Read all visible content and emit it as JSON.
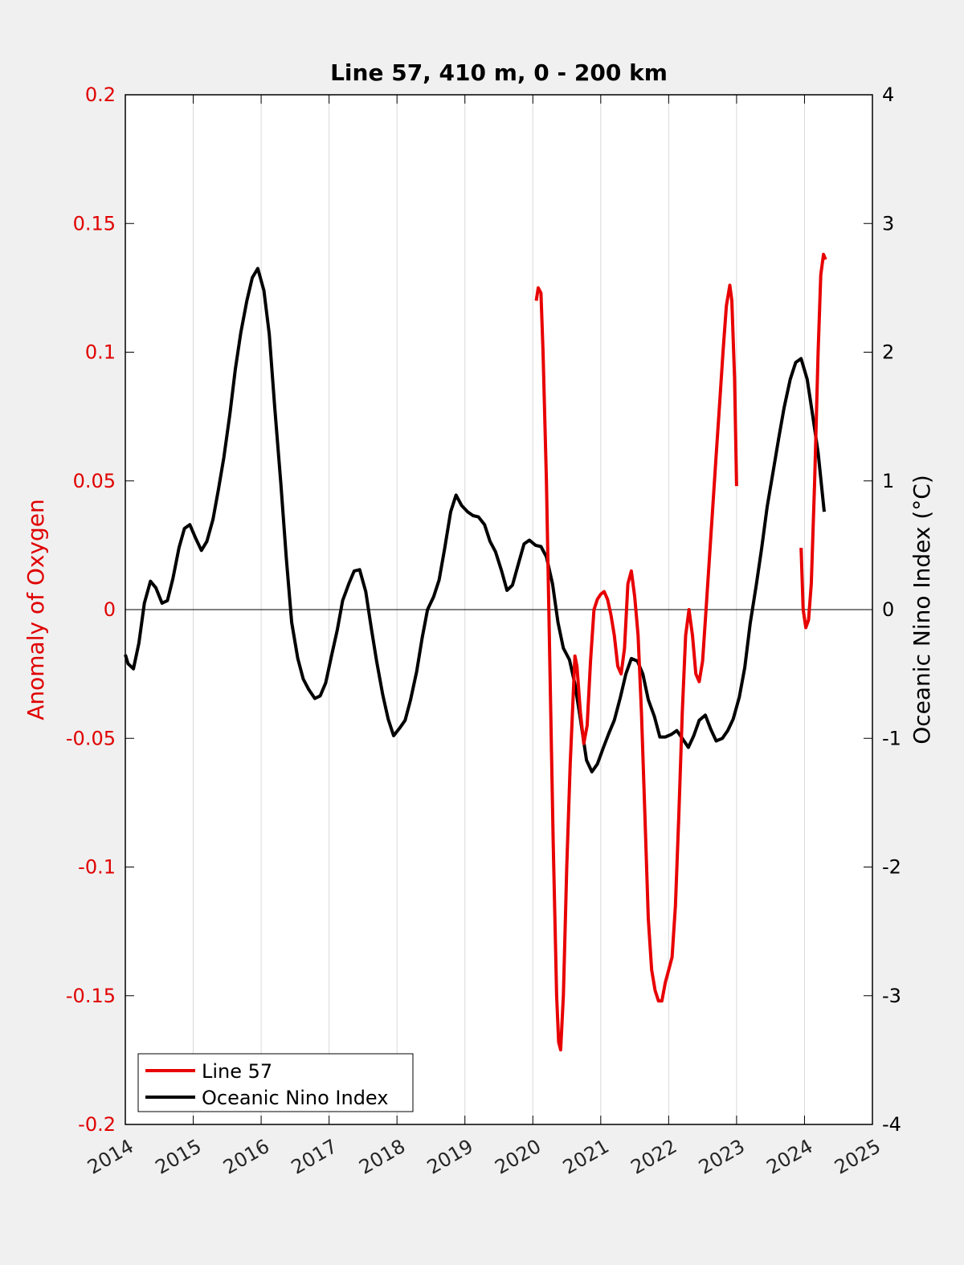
{
  "colors": {
    "left_axis": "#e00000",
    "series_oxygen": "#e80000",
    "series_oni": "#000000",
    "grid": "#d9d9d9"
  },
  "chart_data": {
    "type": "line",
    "title": "Line 57, 410 m, 0 - 200 km",
    "xlabel": "",
    "xlim": [
      2014,
      2025
    ],
    "x_ticks": [
      "2014",
      "2015",
      "2016",
      "2017",
      "2018",
      "2019",
      "2020",
      "2021",
      "2022",
      "2023",
      "2024",
      "2025"
    ],
    "grid": "vertical",
    "legend_position": "bottom-left",
    "left_axis": {
      "label": "Anomaly of Oxygen",
      "ylim": [
        -0.2,
        0.2
      ],
      "ticks": [
        "-0.2",
        "-0.15",
        "-0.1",
        "-0.05",
        "0",
        "0.05",
        "0.1",
        "0.15",
        "0.2"
      ]
    },
    "right_axis": {
      "label": "Oceanic Nino Index (°C)",
      "ylim": [
        -4,
        4
      ],
      "ticks": [
        "-4",
        "-3",
        "-2",
        "-1",
        "0",
        "1",
        "2",
        "3",
        "4"
      ]
    },
    "series": [
      {
        "name": "Line 57",
        "axis": "left",
        "segments": [
          [
            [
              2020.05,
              0.12
            ],
            [
              2020.08,
              0.125
            ],
            [
              2020.12,
              0.123
            ],
            [
              2020.15,
              0.1
            ],
            [
              2020.2,
              0.05
            ],
            [
              2020.25,
              -0.02
            ],
            [
              2020.3,
              -0.09
            ],
            [
              2020.35,
              -0.15
            ],
            [
              2020.38,
              -0.168
            ],
            [
              2020.41,
              -0.171
            ],
            [
              2020.45,
              -0.15
            ],
            [
              2020.5,
              -0.1
            ],
            [
              2020.55,
              -0.06
            ],
            [
              2020.6,
              -0.03
            ],
            [
              2020.62,
              -0.018
            ],
            [
              2020.65,
              -0.022
            ],
            [
              2020.7,
              -0.04
            ],
            [
              2020.75,
              -0.052
            ],
            [
              2020.8,
              -0.045
            ],
            [
              2020.85,
              -0.02
            ],
            [
              2020.9,
              0.0
            ],
            [
              2020.95,
              0.004
            ],
            [
              2021.0,
              0.006
            ],
            [
              2021.05,
              0.007
            ],
            [
              2021.1,
              0.004
            ],
            [
              2021.15,
              -0.002
            ],
            [
              2021.2,
              -0.01
            ],
            [
              2021.25,
              -0.022
            ],
            [
              2021.3,
              -0.025
            ],
            [
              2021.35,
              -0.015
            ],
            [
              2021.4,
              0.01
            ],
            [
              2021.45,
              0.015
            ],
            [
              2021.5,
              0.005
            ],
            [
              2021.55,
              -0.01
            ],
            [
              2021.6,
              -0.04
            ],
            [
              2021.65,
              -0.08
            ],
            [
              2021.7,
              -0.12
            ],
            [
              2021.75,
              -0.14
            ],
            [
              2021.8,
              -0.148
            ],
            [
              2021.85,
              -0.152
            ],
            [
              2021.9,
              -0.152
            ],
            [
              2021.95,
              -0.145
            ],
            [
              2022.0,
              -0.14
            ],
            [
              2022.05,
              -0.135
            ],
            [
              2022.1,
              -0.115
            ],
            [
              2022.15,
              -0.08
            ],
            [
              2022.2,
              -0.04
            ],
            [
              2022.25,
              -0.01
            ],
            [
              2022.3,
              0.0
            ],
            [
              2022.35,
              -0.01
            ],
            [
              2022.4,
              -0.025
            ],
            [
              2022.45,
              -0.028
            ],
            [
              2022.5,
              -0.02
            ],
            [
              2022.55,
              0.0
            ],
            [
              2022.6,
              0.02
            ],
            [
              2022.65,
              0.04
            ],
            [
              2022.7,
              0.06
            ],
            [
              2022.75,
              0.08
            ],
            [
              2022.8,
              0.1
            ],
            [
              2022.85,
              0.118
            ],
            [
              2022.9,
              0.126
            ],
            [
              2022.93,
              0.12
            ],
            [
              2022.97,
              0.09
            ],
            [
              2023.0,
              0.048
            ]
          ],
          [
            [
              2023.95,
              0.024
            ],
            [
              2023.98,
              0.0
            ],
            [
              2024.02,
              -0.007
            ],
            [
              2024.06,
              -0.004
            ],
            [
              2024.1,
              0.01
            ],
            [
              2024.15,
              0.05
            ],
            [
              2024.2,
              0.1
            ],
            [
              2024.24,
              0.13
            ],
            [
              2024.28,
              0.138
            ],
            [
              2024.31,
              0.136
            ]
          ]
        ]
      },
      {
        "name": "Oceanic Nino Index",
        "axis": "right",
        "segments": [
          [
            [
              2014.0,
              -0.35
            ],
            [
              2014.04,
              -0.42
            ],
            [
              2014.12,
              -0.46
            ],
            [
              2014.2,
              -0.26
            ],
            [
              2014.28,
              0.05
            ],
            [
              2014.37,
              0.22
            ],
            [
              2014.45,
              0.17
            ],
            [
              2014.54,
              0.05
            ],
            [
              2014.62,
              0.07
            ],
            [
              2014.7,
              0.24
            ],
            [
              2014.79,
              0.48
            ],
            [
              2014.87,
              0.63
            ],
            [
              2014.95,
              0.66
            ],
            [
              2015.04,
              0.55
            ],
            [
              2015.12,
              0.46
            ],
            [
              2015.2,
              0.53
            ],
            [
              2015.29,
              0.7
            ],
            [
              2015.37,
              0.93
            ],
            [
              2015.45,
              1.18
            ],
            [
              2015.54,
              1.52
            ],
            [
              2015.62,
              1.87
            ],
            [
              2015.7,
              2.15
            ],
            [
              2015.79,
              2.4
            ],
            [
              2015.87,
              2.58
            ],
            [
              2015.95,
              2.65
            ],
            [
              2016.04,
              2.48
            ],
            [
              2016.12,
              2.14
            ],
            [
              2016.2,
              1.57
            ],
            [
              2016.29,
              0.98
            ],
            [
              2016.37,
              0.4
            ],
            [
              2016.45,
              -0.1
            ],
            [
              2016.54,
              -0.38
            ],
            [
              2016.62,
              -0.54
            ],
            [
              2016.7,
              -0.62
            ],
            [
              2016.79,
              -0.69
            ],
            [
              2016.87,
              -0.67
            ],
            [
              2016.95,
              -0.57
            ],
            [
              2017.04,
              -0.35
            ],
            [
              2017.12,
              -0.16
            ],
            [
              2017.2,
              0.07
            ],
            [
              2017.29,
              0.2
            ],
            [
              2017.37,
              0.3
            ],
            [
              2017.45,
              0.31
            ],
            [
              2017.54,
              0.14
            ],
            [
              2017.62,
              -0.14
            ],
            [
              2017.7,
              -0.4
            ],
            [
              2017.79,
              -0.66
            ],
            [
              2017.87,
              -0.85
            ],
            [
              2017.95,
              -0.98
            ],
            [
              2018.04,
              -0.92
            ],
            [
              2018.12,
              -0.86
            ],
            [
              2018.2,
              -0.7
            ],
            [
              2018.29,
              -0.48
            ],
            [
              2018.37,
              -0.22
            ],
            [
              2018.45,
              0.0
            ],
            [
              2018.54,
              0.1
            ],
            [
              2018.62,
              0.23
            ],
            [
              2018.7,
              0.47
            ],
            [
              2018.79,
              0.76
            ],
            [
              2018.87,
              0.89
            ],
            [
              2018.95,
              0.81
            ],
            [
              2019.04,
              0.76
            ],
            [
              2019.12,
              0.73
            ],
            [
              2019.2,
              0.72
            ],
            [
              2019.29,
              0.66
            ],
            [
              2019.37,
              0.53
            ],
            [
              2019.45,
              0.45
            ],
            [
              2019.54,
              0.3
            ],
            [
              2019.62,
              0.15
            ],
            [
              2019.7,
              0.19
            ],
            [
              2019.79,
              0.36
            ],
            [
              2019.87,
              0.51
            ],
            [
              2019.95,
              0.54
            ],
            [
              2020.04,
              0.5
            ],
            [
              2020.12,
              0.49
            ],
            [
              2020.2,
              0.41
            ],
            [
              2020.29,
              0.2
            ],
            [
              2020.37,
              -0.1
            ],
            [
              2020.45,
              -0.3
            ],
            [
              2020.54,
              -0.39
            ],
            [
              2020.62,
              -0.58
            ],
            [
              2020.7,
              -0.85
            ],
            [
              2020.79,
              -1.17
            ],
            [
              2020.87,
              -1.26
            ],
            [
              2020.95,
              -1.2
            ],
            [
              2021.04,
              -1.07
            ],
            [
              2021.12,
              -0.96
            ],
            [
              2021.2,
              -0.86
            ],
            [
              2021.29,
              -0.68
            ],
            [
              2021.37,
              -0.5
            ],
            [
              2021.45,
              -0.38
            ],
            [
              2021.54,
              -0.4
            ],
            [
              2021.62,
              -0.5
            ],
            [
              2021.7,
              -0.7
            ],
            [
              2021.79,
              -0.83
            ],
            [
              2021.87,
              -0.99
            ],
            [
              2021.95,
              -0.99
            ],
            [
              2022.04,
              -0.97
            ],
            [
              2022.12,
              -0.94
            ],
            [
              2022.2,
              -1.0
            ],
            [
              2022.29,
              -1.07
            ],
            [
              2022.37,
              -0.98
            ],
            [
              2022.45,
              -0.86
            ],
            [
              2022.54,
              -0.82
            ],
            [
              2022.62,
              -0.93
            ],
            [
              2022.7,
              -1.02
            ],
            [
              2022.79,
              -1.0
            ],
            [
              2022.87,
              -0.94
            ],
            [
              2022.95,
              -0.85
            ],
            [
              2023.04,
              -0.68
            ],
            [
              2023.12,
              -0.45
            ],
            [
              2023.2,
              -0.11
            ],
            [
              2023.29,
              0.19
            ],
            [
              2023.37,
              0.48
            ],
            [
              2023.45,
              0.8
            ],
            [
              2023.54,
              1.08
            ],
            [
              2023.62,
              1.33
            ],
            [
              2023.7,
              1.57
            ],
            [
              2023.79,
              1.79
            ],
            [
              2023.87,
              1.92
            ],
            [
              2023.95,
              1.95
            ],
            [
              2024.04,
              1.79
            ],
            [
              2024.12,
              1.51
            ],
            [
              2024.2,
              1.22
            ],
            [
              2024.29,
              0.76
            ]
          ]
        ]
      }
    ]
  }
}
